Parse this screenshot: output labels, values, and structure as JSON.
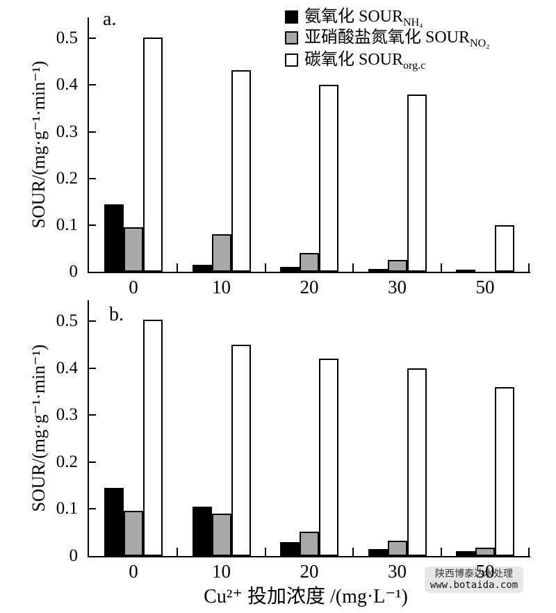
{
  "figure": {
    "background": "#ffffff",
    "axis_color": "#000000"
  },
  "legend": {
    "position": "top-right",
    "items": [
      {
        "name": "ammonia-oxidation",
        "label": "氨氧化 SOUR",
        "sub": "NH₄",
        "fill": "#000000"
      },
      {
        "name": "nitrite-oxidation",
        "label": "亚硝酸盐氮氧化 SOUR",
        "sub": "NO₂",
        "fill": "#a8a8a8"
      },
      {
        "name": "carbon-oxidation",
        "label": "碳氧化 SOUR",
        "sub": "org.c",
        "fill": "#ffffff"
      }
    ]
  },
  "watermark": {
    "line1": "陕西博泰达水处理",
    "line2": "www.botaida.com"
  },
  "chart_data": [
    {
      "type": "bar",
      "panel": "a.",
      "title": "",
      "ylabel": "SOUR/(mg·g⁻¹·min⁻¹)",
      "xlabel": "",
      "categories": [
        "0",
        "10",
        "20",
        "30",
        "50"
      ],
      "yticks": [
        0,
        0.1,
        0.2,
        0.3,
        0.4,
        0.5
      ],
      "ylim": [
        0,
        0.545
      ],
      "grid": false,
      "series": [
        {
          "name": "SOUR_NH4",
          "color": "#000000",
          "values": [
            0.145,
            0.015,
            0.01,
            0.006,
            0.004
          ]
        },
        {
          "name": "SOUR_NO2",
          "color": "#a8a8a8",
          "values": [
            0.095,
            0.08,
            0.04,
            0.025,
            0
          ]
        },
        {
          "name": "SOUR_org.c",
          "color": "#ffffff",
          "values": [
            0.502,
            0.432,
            0.4,
            0.38,
            0.1
          ]
        }
      ]
    },
    {
      "type": "bar",
      "panel": "b.",
      "title": "",
      "ylabel": "SOUR/(mg·g⁻¹·min⁻¹)",
      "xlabel": "Cu²⁺ 投加浓度 /(mg·L⁻¹)",
      "categories": [
        "0",
        "10",
        "20",
        "30",
        "50"
      ],
      "yticks": [
        0,
        0.1,
        0.2,
        0.3,
        0.4,
        0.5
      ],
      "ylim": [
        0,
        0.545
      ],
      "grid": false,
      "series": [
        {
          "name": "SOUR_NH4",
          "color": "#000000",
          "values": [
            0.145,
            0.105,
            0.03,
            0.015,
            0.01
          ]
        },
        {
          "name": "SOUR_NO2",
          "color": "#a8a8a8",
          "values": [
            0.097,
            0.09,
            0.052,
            0.032,
            0.018
          ]
        },
        {
          "name": "SOUR_org.c",
          "color": "#ffffff",
          "values": [
            0.503,
            0.45,
            0.42,
            0.4,
            0.36
          ]
        }
      ]
    }
  ]
}
